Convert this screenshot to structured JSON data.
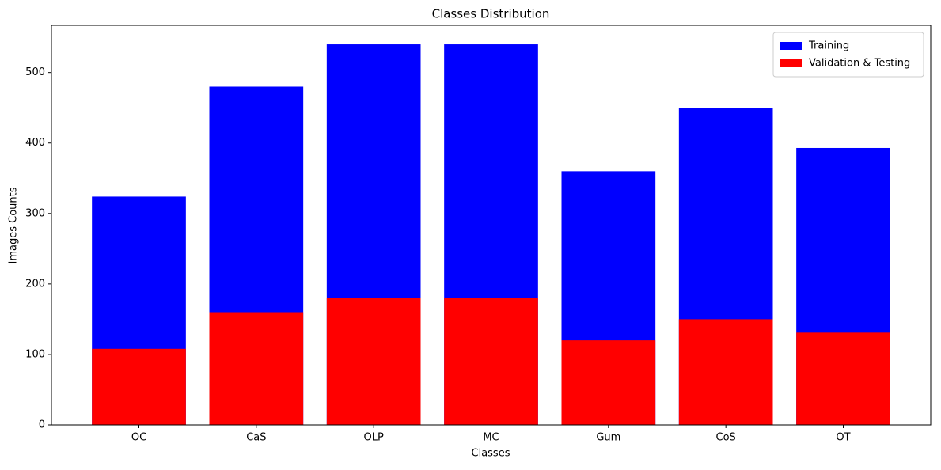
{
  "chart_data": {
    "type": "bar",
    "title": "Classes Distribution",
    "x_label": "Classes",
    "y_label": "Images Counts",
    "categories": [
      "OC",
      "CaS",
      "OLP",
      "MC",
      "Gum",
      "CoS",
      "OT"
    ],
    "series": [
      {
        "name": "Training",
        "color": "#0000ff",
        "values": [
          324,
          480,
          540,
          540,
          360,
          450,
          393
        ]
      },
      {
        "name": "Validation & Testing",
        "color": "#ff0000",
        "values": [
          108,
          160,
          180,
          180,
          120,
          150,
          131
        ]
      }
    ],
    "ylim": [
      0,
      567
    ],
    "yticks": [
      0,
      100,
      200,
      300,
      400,
      500
    ],
    "grid": false,
    "legend": "upper-right"
  }
}
